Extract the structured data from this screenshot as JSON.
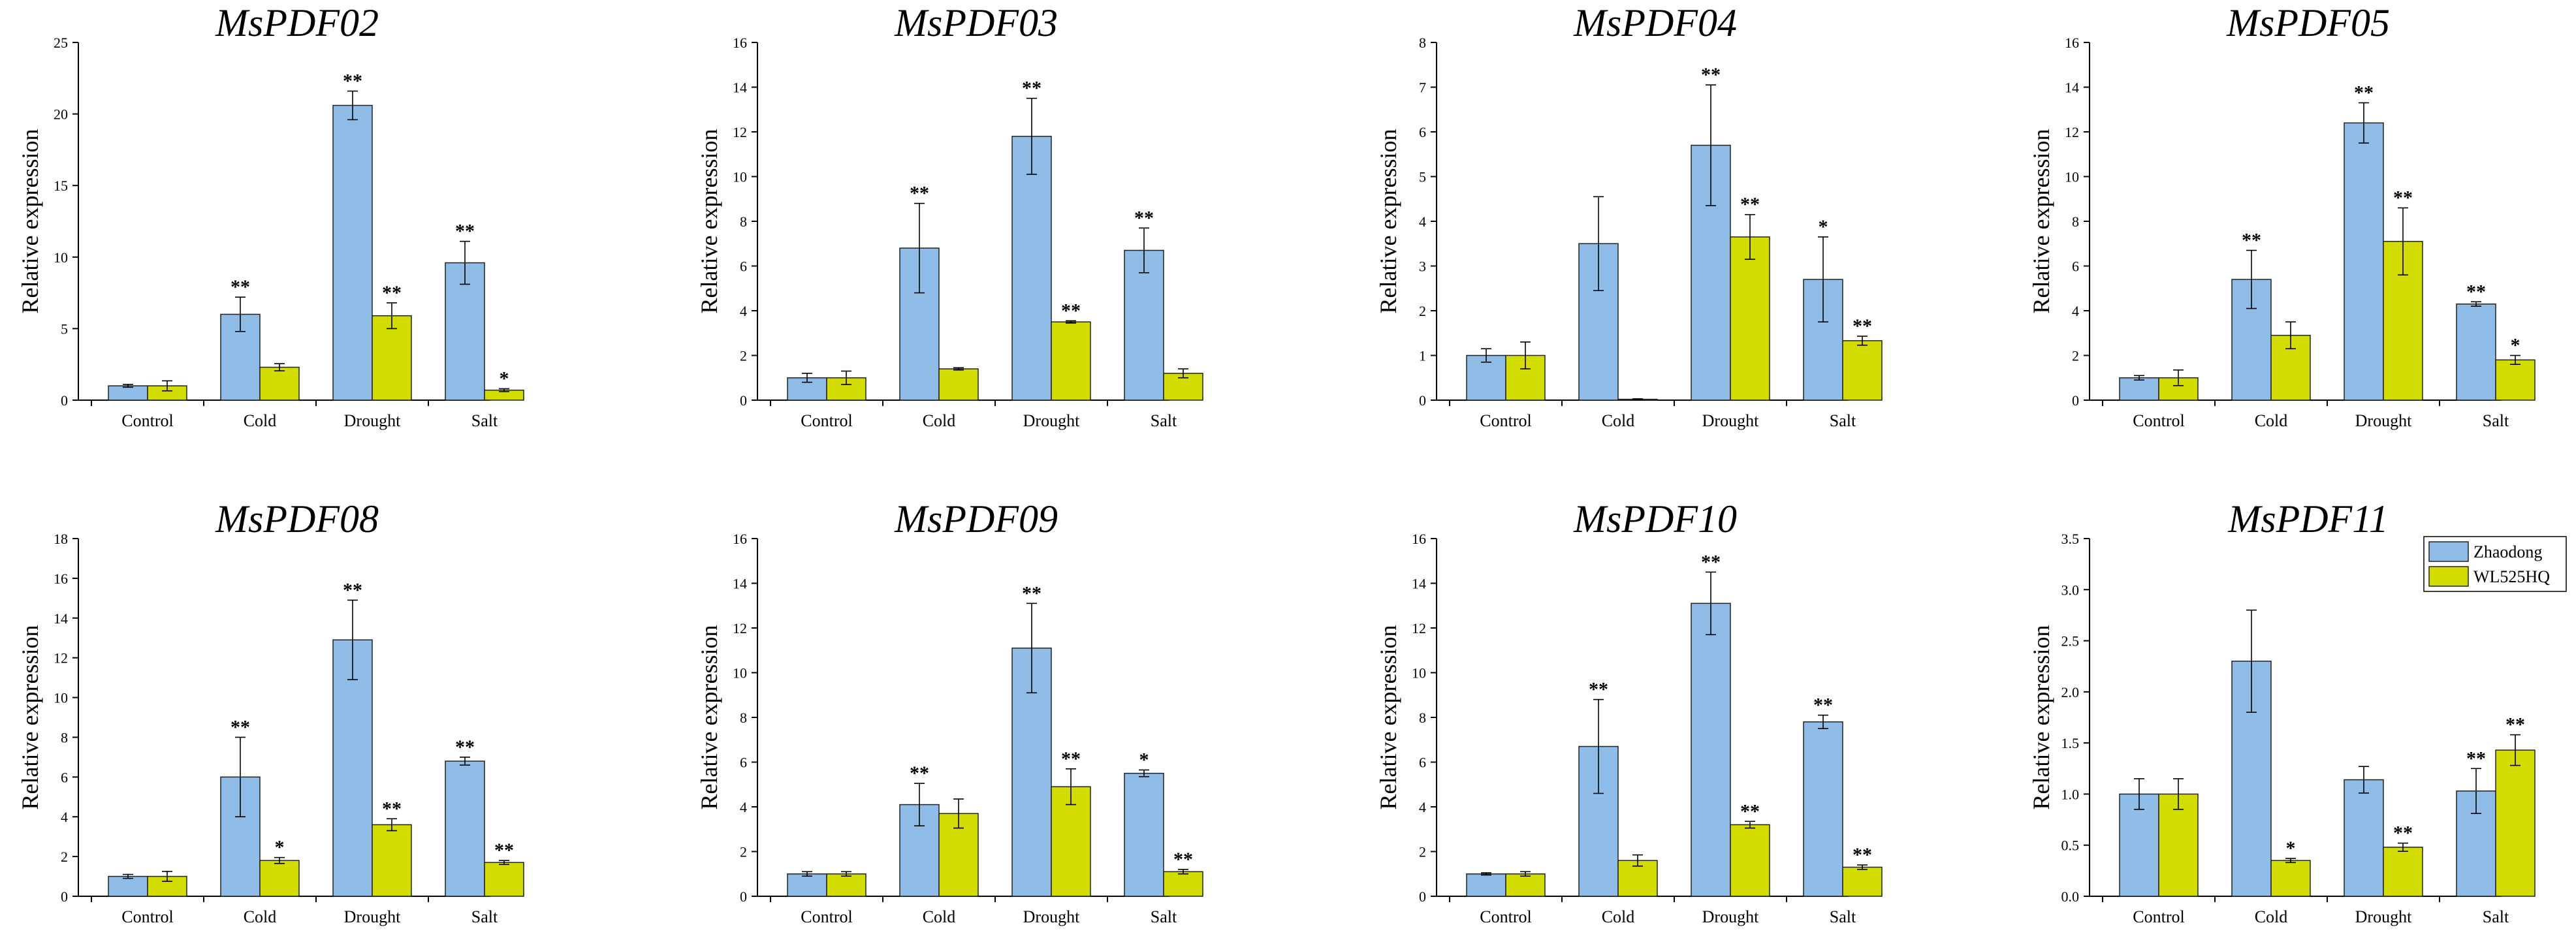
{
  "colors": {
    "series1": "#8fbde8",
    "series2": "#d2dc00",
    "axis": "#000000"
  },
  "legend": [
    {
      "name": "Zhaodong",
      "color": "#8fbde8"
    },
    {
      "name": "WL525HQ",
      "color": "#d2dc00"
    }
  ],
  "chart_data": [
    {
      "type": "bar",
      "title": "MsPDF02",
      "ylabel": "Relative expression",
      "ylim": [
        0,
        25
      ],
      "yticks": [
        "0",
        "5",
        "10",
        "15",
        "20",
        "25"
      ],
      "categories": [
        "Control",
        "Cold",
        "Drought",
        "Salt"
      ],
      "series": [
        {
          "name": "Zhaodong",
          "values": [
            1,
            6,
            20.6,
            9.6
          ],
          "errors": [
            0.1,
            1.2,
            1.0,
            1.5
          ],
          "stars": [
            "",
            "**",
            "**",
            "**"
          ]
        },
        {
          "name": "WL525HQ",
          "values": [
            1,
            2.3,
            5.9,
            0.7
          ],
          "errors": [
            0.35,
            0.25,
            0.9,
            0.1
          ],
          "stars": [
            "",
            "",
            "**",
            "*"
          ]
        }
      ]
    },
    {
      "type": "bar",
      "title": "MsPDF03",
      "ylabel": "Relative expression",
      "ylim": [
        0,
        16
      ],
      "yticks": [
        "0",
        "2",
        "4",
        "6",
        "8",
        "10",
        "12",
        "14",
        "16"
      ],
      "categories": [
        "Control",
        "Cold",
        "Drought",
        "Salt"
      ],
      "series": [
        {
          "name": "Zhaodong",
          "values": [
            1,
            6.8,
            11.8,
            6.7
          ],
          "errors": [
            0.2,
            2.0,
            1.7,
            1.0
          ],
          "stars": [
            "",
            "**",
            "**",
            "**"
          ]
        },
        {
          "name": "WL525HQ",
          "values": [
            1,
            1.4,
            3.5,
            1.2
          ],
          "errors": [
            0.3,
            0.05,
            0.05,
            0.2
          ],
          "stars": [
            "",
            "",
            "**",
            ""
          ]
        }
      ]
    },
    {
      "type": "bar",
      "title": "MsPDF04",
      "ylabel": "Relative expression",
      "ylim": [
        0,
        8
      ],
      "yticks": [
        "0",
        "1",
        "2",
        "3",
        "4",
        "5",
        "6",
        "7",
        "8"
      ],
      "categories": [
        "Control",
        "Cold",
        "Drought",
        "Salt"
      ],
      "series": [
        {
          "name": "Zhaodong",
          "values": [
            1,
            3.5,
            5.7,
            2.7
          ],
          "errors": [
            0.15,
            1.05,
            1.35,
            0.95
          ],
          "stars": [
            "",
            "",
            "**",
            "*"
          ]
        },
        {
          "name": "WL525HQ",
          "values": [
            1,
            0.02,
            3.65,
            1.33
          ],
          "errors": [
            0.3,
            0.01,
            0.5,
            0.1
          ],
          "stars": [
            "",
            "",
            "**",
            "**"
          ]
        }
      ]
    },
    {
      "type": "bar",
      "title": "MsPDF05",
      "ylabel": "Relative expression",
      "ylim": [
        0,
        16
      ],
      "yticks": [
        "0",
        "2",
        "4",
        "6",
        "8",
        "10",
        "12",
        "14",
        "16"
      ],
      "categories": [
        "Control",
        "Cold",
        "Drought",
        "Salt"
      ],
      "series": [
        {
          "name": "Zhaodong",
          "values": [
            1,
            5.4,
            12.4,
            4.3
          ],
          "errors": [
            0.1,
            1.3,
            0.9,
            0.1
          ],
          "stars": [
            "",
            "**",
            "**",
            "**"
          ]
        },
        {
          "name": "WL525HQ",
          "values": [
            1,
            2.9,
            7.1,
            1.8
          ],
          "errors": [
            0.35,
            0.6,
            1.5,
            0.2
          ],
          "stars": [
            "",
            "",
            "**",
            "*"
          ]
        }
      ]
    },
    {
      "type": "bar",
      "title": "MsPDF08",
      "ylabel": "Relative expression",
      "ylim": [
        0,
        18
      ],
      "yticks": [
        "0",
        "2",
        "4",
        "6",
        "8",
        "10",
        "12",
        "14",
        "16",
        "18"
      ],
      "categories": [
        "Control",
        "Cold",
        "Drought",
        "Salt"
      ],
      "series": [
        {
          "name": "Zhaodong",
          "values": [
            1,
            6,
            12.9,
            6.8
          ],
          "errors": [
            0.1,
            2.0,
            2.0,
            0.2
          ],
          "stars": [
            "",
            "**",
            "**",
            "**"
          ]
        },
        {
          "name": "WL525HQ",
          "values": [
            1,
            1.8,
            3.6,
            1.7
          ],
          "errors": [
            0.25,
            0.15,
            0.3,
            0.1
          ],
          "stars": [
            "",
            "*",
            "**",
            "**"
          ]
        }
      ]
    },
    {
      "type": "bar",
      "title": "MsPDF09",
      "ylabel": "Relative expression",
      "ylim": [
        0,
        16
      ],
      "yticks": [
        "0",
        "2",
        "4",
        "6",
        "8",
        "10",
        "12",
        "14",
        "16"
      ],
      "categories": [
        "Control",
        "Cold",
        "Drought",
        "Salt"
      ],
      "series": [
        {
          "name": "Zhaodong",
          "values": [
            1,
            4.1,
            11.1,
            5.5
          ],
          "errors": [
            0.1,
            0.95,
            2.0,
            0.15
          ],
          "stars": [
            "",
            "**",
            "**",
            "*"
          ]
        },
        {
          "name": "WL525HQ",
          "values": [
            1,
            3.7,
            4.9,
            1.1
          ],
          "errors": [
            0.1,
            0.65,
            0.8,
            0.1
          ],
          "stars": [
            "",
            "",
            "**",
            "**"
          ]
        }
      ]
    },
    {
      "type": "bar",
      "title": "MsPDF10",
      "ylabel": "Relative expression",
      "ylim": [
        0,
        16
      ],
      "yticks": [
        "0",
        "2",
        "4",
        "6",
        "8",
        "10",
        "12",
        "14",
        "16"
      ],
      "categories": [
        "Control",
        "Cold",
        "Drought",
        "Salt"
      ],
      "series": [
        {
          "name": "Zhaodong",
          "values": [
            1,
            6.7,
            13.1,
            7.8
          ],
          "errors": [
            0.05,
            2.1,
            1.4,
            0.3
          ],
          "stars": [
            "",
            "**",
            "**",
            "**"
          ]
        },
        {
          "name": "WL525HQ",
          "values": [
            1,
            1.6,
            3.2,
            1.3
          ],
          "errors": [
            0.1,
            0.25,
            0.15,
            0.1
          ],
          "stars": [
            "",
            "",
            "**",
            "**"
          ]
        }
      ]
    },
    {
      "type": "bar",
      "title": "MsPDF11",
      "ylabel": "Relative expression",
      "ylim": [
        0,
        3.5
      ],
      "yticks": [
        "0.0",
        "0.5",
        "1.0",
        "1.5",
        "2.0",
        "2.5",
        "3.0",
        "3.5"
      ],
      "categories": [
        "Control",
        "Cold",
        "Drought",
        "Salt"
      ],
      "series": [
        {
          "name": "Zhaodong",
          "values": [
            1,
            2.3,
            1.14,
            1.03
          ],
          "errors": [
            0.15,
            0.5,
            0.13,
            0.22
          ],
          "stars": [
            "",
            "",
            "",
            "**"
          ]
        },
        {
          "name": "WL525HQ",
          "values": [
            1,
            0.35,
            0.48,
            1.43
          ],
          "errors": [
            0.15,
            0.02,
            0.04,
            0.15
          ],
          "stars": [
            "",
            "*",
            "**",
            "**"
          ]
        }
      ]
    }
  ]
}
